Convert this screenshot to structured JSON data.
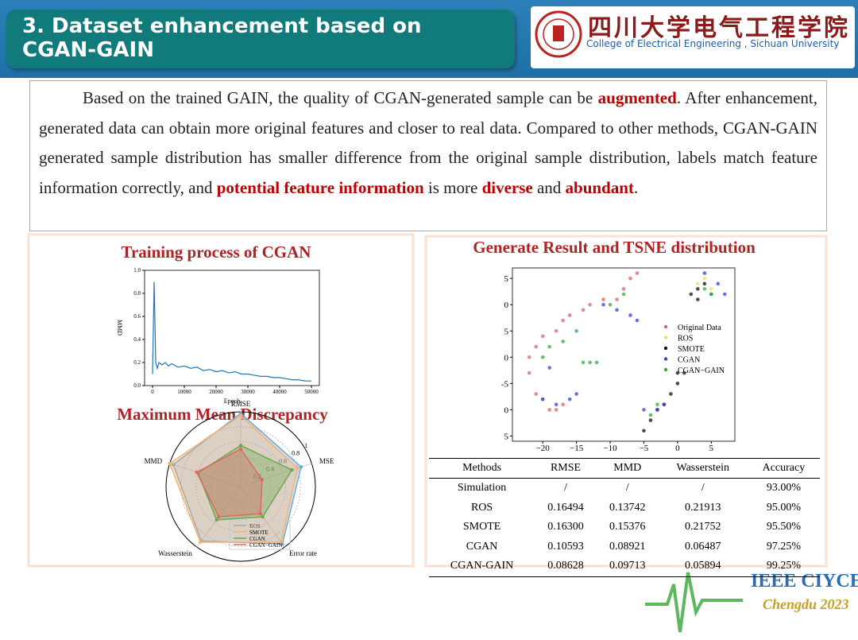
{
  "header": {
    "title": "3. Dataset enhancement based on CGAN-GAIN",
    "university_cn": "四川大学电气工程学院",
    "university_en": "College of Electrical Engineering , Sichuan University"
  },
  "intro": [
    {
      "text": "Based on the trained GAIN, the quality of CGAN-generated sample can be "
    },
    {
      "text": "augmented",
      "emphasis": true
    },
    {
      "text": ". After enhancement, generated data can obtain more original features and closer to real data. Compared to other methods, CGAN-GAIN generated sample distribution has smaller difference from the original sample distribution, labels match feature information correctly, and "
    },
    {
      "text": "potential feature information",
      "emphasis": true
    },
    {
      "text": " is more "
    },
    {
      "text": "diverse",
      "emphasis": true
    },
    {
      "text": " and "
    },
    {
      "text": "abundant",
      "emphasis": true
    },
    {
      "text": "."
    }
  ],
  "chart_data": [
    {
      "type": "line",
      "title": "Training process of CGAN",
      "x_label": "Epoch",
      "y_label": "MMD",
      "color": "#1f77b4",
      "x": [
        0,
        500,
        1000,
        1500,
        2000,
        3000,
        4000,
        5000,
        6000,
        8000,
        10000,
        12000,
        14000,
        16000,
        18000,
        20000,
        22000,
        24000,
        26000,
        28000,
        30000,
        32000,
        34000,
        36000,
        38000,
        40000,
        42000,
        44000,
        46000,
        48000,
        50000
      ],
      "values": [
        0.1,
        0.9,
        0.2,
        0.15,
        0.2,
        0.18,
        0.2,
        0.17,
        0.19,
        0.16,
        0.17,
        0.15,
        0.16,
        0.13,
        0.14,
        0.12,
        0.13,
        0.11,
        0.12,
        0.1,
        0.1,
        0.09,
        0.08,
        0.08,
        0.07,
        0.07,
        0.06,
        0.05,
        0.05,
        0.04,
        0.04
      ],
      "xlim": [
        -2500,
        52500
      ],
      "xticks": [
        0,
        10000,
        20000,
        30000,
        40000,
        50000
      ],
      "ylim": [
        0,
        1
      ],
      "yticks": [
        {
          "value": 0,
          "label": "0.0"
        },
        {
          "value": 0.2,
          "label": "0.2"
        },
        {
          "value": 0.4,
          "label": "0.4"
        },
        {
          "value": 0.6,
          "label": "0.6"
        },
        {
          "value": 0.8,
          "label": "0.8"
        },
        {
          "value": 1,
          "label": "1.0"
        }
      ]
    },
    {
      "type": "radar",
      "title": "Maximum Mean Discrepancy",
      "axes": [
        "RMSE",
        "MSE",
        "Error rate",
        "Wasserstein",
        "MMD"
      ],
      "rlim": [
        0,
        1
      ],
      "rticks": [
        0.2,
        0.4,
        0.6,
        0.8,
        1
      ],
      "series": [
        {
          "name": "ROS",
          "color": "#6fa8dc",
          "values": [
            0.98,
            0.85,
            0.95,
            0.9,
            0.95
          ]
        },
        {
          "name": "SMOTE",
          "color": "#f6b26b",
          "values": [
            0.95,
            0.8,
            0.92,
            0.92,
            1
          ]
        },
        {
          "name": "CGAN",
          "color": "#6aa84f",
          "values": [
            0.55,
            0.72,
            0.5,
            0.55,
            0.6
          ]
        },
        {
          "name": "CGAN−GAIN",
          "color": "#e06666",
          "values": [
            0.5,
            0.3,
            0.45,
            0.5,
            0.62
          ]
        }
      ]
    },
    {
      "type": "scatter",
      "title": "Generate Result and TSNE distribution",
      "xlim": [
        -24.5,
        8.5
      ],
      "xticks": [
        {
          "value": -20,
          "label": "−20"
        },
        {
          "value": -15,
          "label": "−15"
        },
        {
          "value": -10,
          "label": "−10"
        },
        {
          "value": -5,
          "label": "−5"
        },
        0,
        5
      ],
      "ylim": [
        -16,
        17
      ],
      "yticks": [
        {
          "value": 15,
          "label": "5"
        },
        {
          "value": 10,
          "label": "0"
        },
        5,
        0,
        -5,
        {
          "value": -10,
          "label": "0"
        },
        {
          "value": -15,
          "label": "5"
        }
      ],
      "series": [
        {
          "name": "Original Data",
          "color": "#e06060",
          "x": [
            -22,
            -21,
            -20,
            -19,
            -21,
            -20,
            -18,
            -17,
            -16,
            -14,
            -13,
            -11,
            -9,
            -8,
            -7,
            -6,
            -18,
            -17,
            -22
          ],
          "y": [
            -3,
            -7,
            -8,
            -10,
            2,
            4,
            5,
            7,
            8,
            9,
            10,
            11,
            11,
            13,
            15,
            16,
            -10,
            -9,
            0
          ]
        },
        {
          "name": "ROS",
          "color": "#f1e05a",
          "x": [
            4,
            3,
            5
          ],
          "y": [
            15,
            14,
            13
          ]
        },
        {
          "name": "SMOTE",
          "color": "#111111",
          "x": [
            3,
            4,
            2,
            3,
            -4,
            -3,
            -2,
            -1,
            0,
            1,
            0,
            -5
          ],
          "y": [
            13,
            14,
            12,
            11,
            -12,
            -10,
            -9,
            -7,
            -5,
            -3,
            -3,
            -14
          ]
        },
        {
          "name": "CGAN",
          "color": "#3344dd",
          "x": [
            -20,
            -18,
            -16,
            -15,
            -19,
            -11,
            -9,
            -7,
            -6,
            5,
            7,
            6,
            4,
            -5,
            -2,
            -3
          ],
          "y": [
            -8,
            -9,
            -8,
            -7,
            -2,
            10,
            9,
            8,
            7,
            12,
            12,
            14,
            16,
            -10,
            -9,
            -10
          ]
        },
        {
          "name": "CGAN−GAIN",
          "color": "#33aa44",
          "x": [
            -20,
            -19,
            -17,
            -15,
            -13,
            -14,
            -12,
            -10,
            -8,
            4,
            5,
            -4,
            -3
          ],
          "y": [
            0,
            2,
            3,
            5,
            -1,
            -1,
            -1,
            10,
            12,
            13,
            12,
            -11,
            -9
          ]
        }
      ]
    }
  ],
  "table": {
    "header": [
      "Methods",
      "RMSE",
      "MMD",
      "Wasserstein",
      "Accuracy"
    ],
    "rows": [
      [
        "Simulation",
        "/",
        "/",
        "/",
        "93.00%"
      ],
      [
        "ROS",
        "0.16494",
        "0.13742",
        "0.21913",
        "95.00%"
      ],
      [
        "SMOTE",
        "0.16300",
        "0.15376",
        "0.21752",
        "95.50%"
      ],
      [
        "CGAN",
        "0.10593",
        "0.08921",
        "0.06487",
        "97.25%"
      ],
      [
        "CGAN-GAIN",
        "0.08628",
        "0.09713",
        "0.05894",
        "99.25%"
      ]
    ]
  },
  "footer": {
    "logo_title": "IEEE CIYCEE",
    "logo_subtitle": "Chengdu 2023"
  }
}
